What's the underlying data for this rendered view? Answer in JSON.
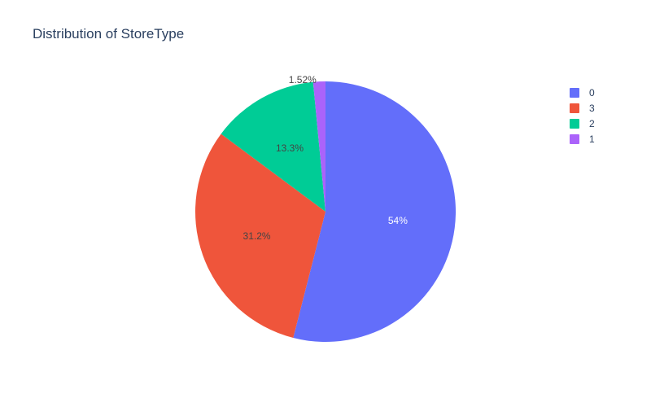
{
  "chart_data": {
    "type": "pie",
    "title": "Distribution of StoreType",
    "slices": [
      {
        "label": "0",
        "percent": 54,
        "percent_text": "54%",
        "color": "#636efa",
        "text_color": "#ffffff"
      },
      {
        "label": "3",
        "percent": 31.2,
        "percent_text": "31.2%",
        "color": "#ef553b",
        "text_color": "#444444"
      },
      {
        "label": "2",
        "percent": 13.3,
        "percent_text": "13.3%",
        "color": "#00cc96",
        "text_color": "#444444"
      },
      {
        "label": "1",
        "percent": 1.52,
        "percent_text": "1.52%",
        "color": "#ab63fa",
        "text_color": "#444444"
      }
    ],
    "legend_placement": "top-right",
    "direction": "clockwise",
    "start": "top"
  }
}
